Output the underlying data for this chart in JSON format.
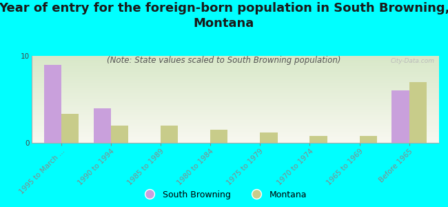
{
  "title": "Year of entry for the foreign-born population in South Browning,\nMontana",
  "subtitle": "(Note: State values scaled to South Browning population)",
  "categories": [
    "1995 to March ...",
    "1990 to 1994",
    "1985 to 1989",
    "1980 to 1984",
    "1975 to 1979",
    "1970 to 1974",
    "1965 to 1969",
    "Before 1965"
  ],
  "south_browning": [
    9.0,
    4.0,
    0.0,
    0.0,
    0.0,
    0.0,
    0.0,
    6.0
  ],
  "montana": [
    3.3,
    2.0,
    2.0,
    1.5,
    1.2,
    0.8,
    0.8,
    7.0
  ],
  "sb_color": "#c9a0dc",
  "mt_color": "#c8cc8a",
  "background_color": "#00ffff",
  "ylim": [
    0,
    10
  ],
  "bar_width": 0.35,
  "title_fontsize": 13,
  "subtitle_fontsize": 8.5,
  "tick_fontsize": 7.5,
  "watermark": "City-Data.com"
}
